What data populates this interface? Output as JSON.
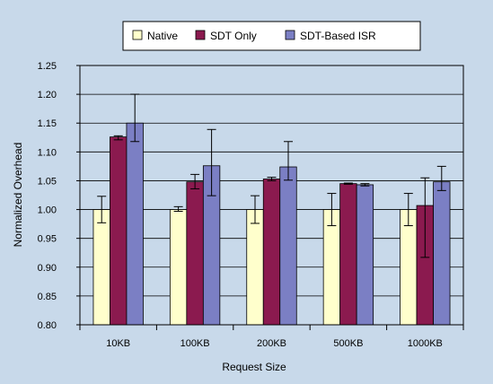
{
  "chart_data": {
    "type": "bar",
    "title": "",
    "xlabel": "Request Size",
    "ylabel": "Normalized Overhead",
    "ylim": [
      0.8,
      1.25
    ],
    "yticks": [
      "0.80",
      "0.85",
      "0.90",
      "0.95",
      "1.00",
      "1.05",
      "1.10",
      "1.15",
      "1.20",
      "1.25"
    ],
    "categories": [
      "10KB",
      "100KB",
      "200KB",
      "500KB",
      "1000KB"
    ],
    "grid": true,
    "legend_position": "top",
    "series": [
      {
        "name": "Native",
        "color": "#ffffcc",
        "values": [
          1.0,
          1.0,
          1.0,
          1.0,
          1.0
        ],
        "err_low": [
          0.977,
          0.997,
          0.976,
          0.972,
          0.972
        ],
        "err_high": [
          1.023,
          1.005,
          1.024,
          1.028,
          1.028
        ]
      },
      {
        "name": "SDT Only",
        "color": "#8b1a4f",
        "values": [
          1.126,
          1.048,
          1.053,
          1.045,
          1.007
        ],
        "err_low": [
          1.121,
          1.036,
          1.05,
          1.044,
          0.917
        ],
        "err_high": [
          1.128,
          1.061,
          1.056,
          1.046,
          1.055
        ]
      },
      {
        "name": "SDT-Based ISR",
        "color": "#7b7fc4",
        "values": [
          1.15,
          1.076,
          1.074,
          1.043,
          1.048
        ],
        "err_low": [
          1.118,
          1.024,
          1.051,
          1.041,
          1.033
        ],
        "err_high": [
          1.2,
          1.139,
          1.118,
          1.045,
          1.075
        ]
      }
    ]
  }
}
